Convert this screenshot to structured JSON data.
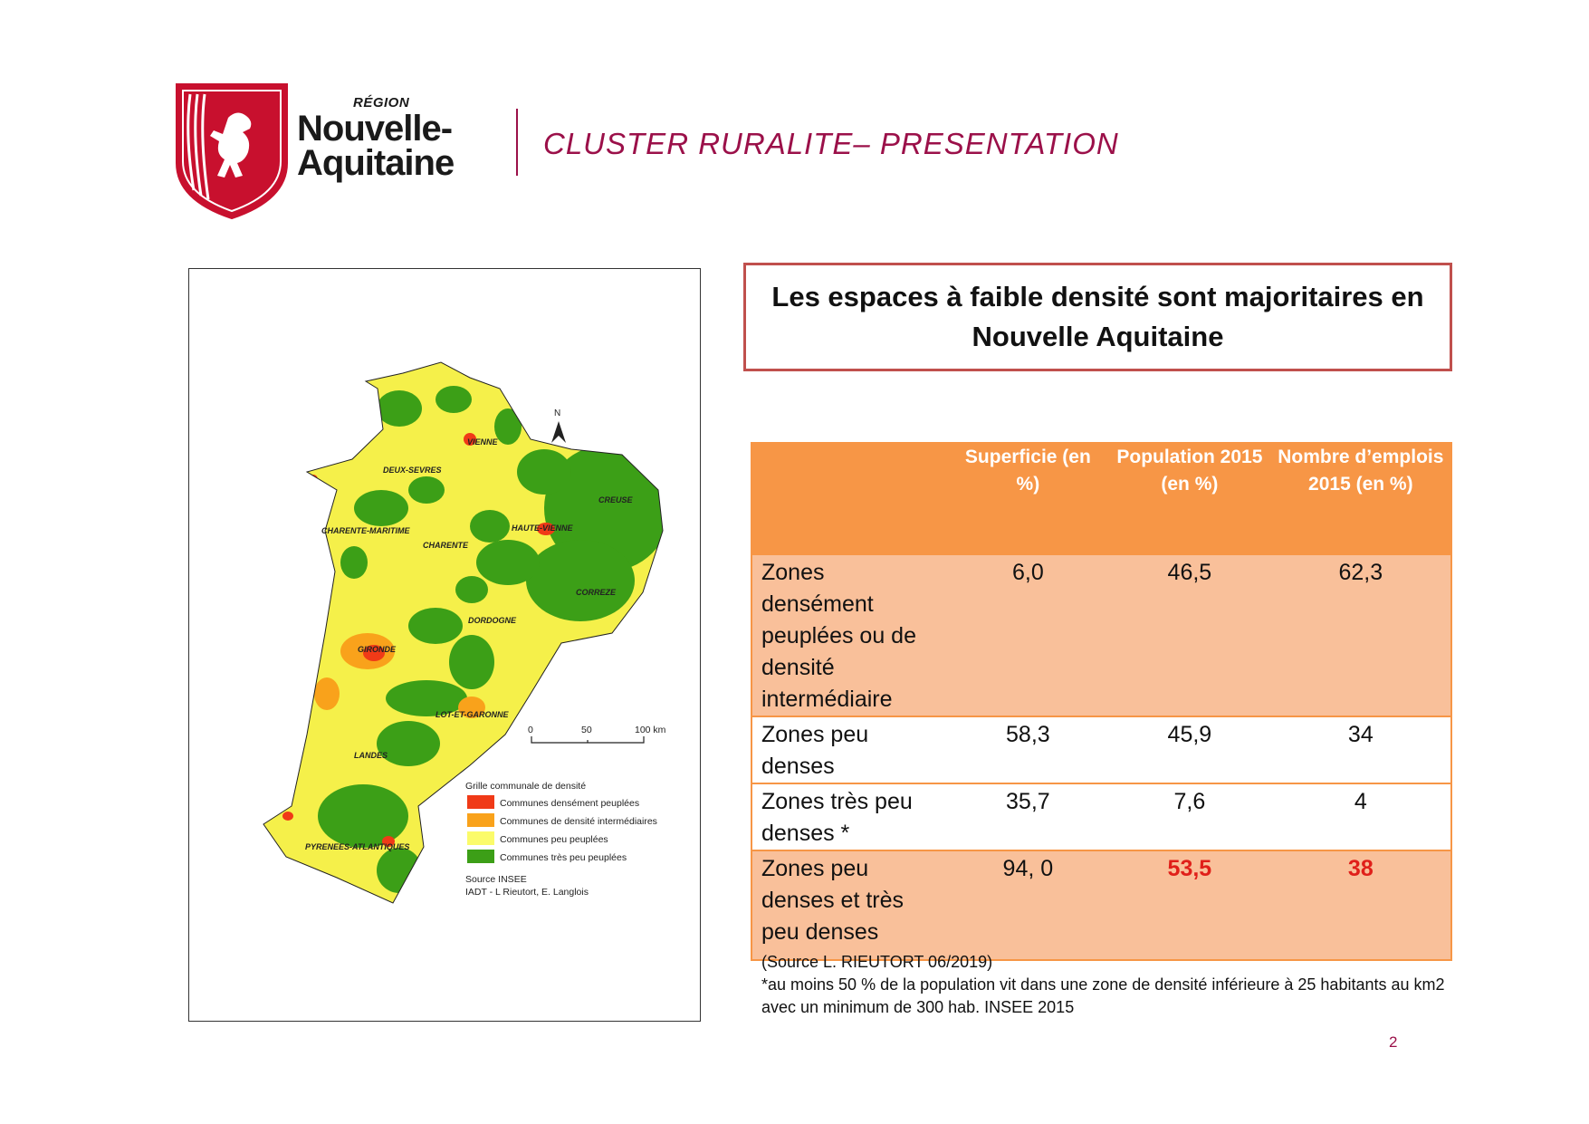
{
  "header": {
    "logo": {
      "region": "RÉGION",
      "line1": "Nouvelle-",
      "line2": "Aquitaine"
    },
    "title": "CLUSTER RURALITE– PRESENTATION"
  },
  "map": {
    "departments": [
      "VIENNE",
      "DEUX-SEVRES",
      "CREUSE",
      "CHARENTE-MARITIME",
      "CHARENTE",
      "HAUTE-VIENNE",
      "CORREZE",
      "DORDOGNE",
      "GIRONDE",
      "LOT-ET-GARONNE",
      "LANDES",
      "PYRENEES-ATLANTIQUES"
    ],
    "north": "N",
    "scale": [
      "0",
      "50",
      "100 km"
    ],
    "legend": {
      "title": "Grille communale de densité",
      "items": [
        {
          "label": "Communes densément peuplées",
          "color": "#f03a17"
        },
        {
          "label": "Communes de densité intermédiaires",
          "color": "#f9a21b"
        },
        {
          "label": "Communes peu peuplées",
          "color": "#fbfb6a"
        },
        {
          "label": "Communes très peu peuplées",
          "color": "#3c9f17"
        }
      ],
      "source": "Source INSEE",
      "authors": "IADT - L Rieutort, E. Langlois"
    }
  },
  "headline": "Les espaces à faible densité sont majoritaires en Nouvelle Aquitaine",
  "table": {
    "headers": [
      "",
      "Superficie (en %)",
      "Population 2015 (en %)",
      "Nombre d’emplois 2015 (en %)"
    ],
    "rows": [
      {
        "label": "Zones densément peuplées ou de densité intermédiaire",
        "values": [
          "6,0",
          "46,5",
          "62,3"
        ]
      },
      {
        "label": "Zones peu denses",
        "values": [
          "58,3",
          "45,9",
          "34"
        ]
      },
      {
        "label": "Zones très peu denses *",
        "values": [
          "35,7",
          "7,6",
          "4"
        ]
      },
      {
        "label": "Zones peu denses et très peu denses",
        "values": [
          "94, 0",
          "53,5",
          "38"
        ]
      }
    ]
  },
  "notes": {
    "source": "(Source L. RIEUTORT 06/2019)",
    "footnote": "*au moins 50 % de la population vit dans une zone de densité inférieure à 25 habitants au km2 avec un minimum de 300 hab. INSEE 2015"
  },
  "page_number": "2"
}
